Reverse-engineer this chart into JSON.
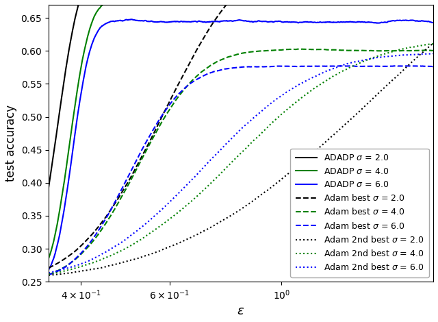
{
  "xlabel": "$\\varepsilon$",
  "ylabel": "test accuracy",
  "xlim": [
    0.345,
    2.0
  ],
  "ylim": [
    0.25,
    0.67
  ],
  "legend_labels": [
    "ADADP $\\sigma$ = 2.0",
    "ADADP $\\sigma$ = 4.0",
    "ADADP $\\sigma$ = 6.0",
    "Adam best $\\sigma$ = 2.0",
    "Adam best $\\sigma$ = 4.0",
    "Adam best $\\sigma$ = 6.0",
    "Adam 2nd best $\\sigma$ = 2.0",
    "Adam 2nd best $\\sigma$ = 4.0",
    "Adam 2nd best $\\sigma$ = 6.0"
  ],
  "colors": [
    "black",
    "green",
    "blue",
    "black",
    "green",
    "blue",
    "black",
    "green",
    "blue"
  ],
  "linestyles": [
    "solid",
    "solid",
    "solid",
    "dashed",
    "dashed",
    "dashed",
    "dotted",
    "dotted",
    "dotted"
  ],
  "linewidths": [
    1.5,
    1.5,
    1.5,
    1.5,
    1.5,
    1.5,
    1.5,
    1.5,
    1.5
  ],
  "seed": 42,
  "n_points": 800,
  "xticks": [
    0.4,
    0.6,
    1.0
  ],
  "xtick_labels": [
    "$4 \\times 10^{-1}$",
    "$6 \\times 10^{-1}$",
    "$10^0$"
  ],
  "yticks": [
    0.25,
    0.3,
    0.35,
    0.4,
    0.45,
    0.5,
    0.55,
    0.6,
    0.65
  ]
}
